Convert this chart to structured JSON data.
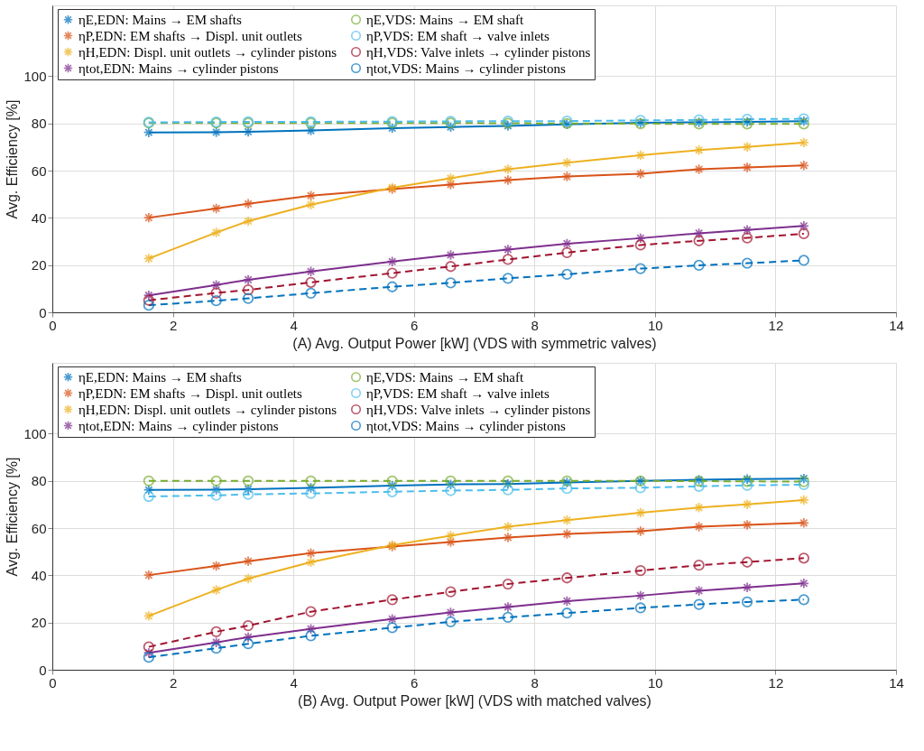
{
  "chart_data": [
    {
      "type": "line",
      "xlabel": "(A) Avg. Output Power [kW]   (VDS with symmetric valves)",
      "ylabel": "Avg. Efficiency [%]",
      "x": [
        1.6,
        2.72,
        3.25,
        4.29,
        5.64,
        6.61,
        7.56,
        8.54,
        9.76,
        10.73,
        11.53,
        12.47
      ],
      "xlim": [
        0,
        14
      ],
      "xticks": [
        0,
        2,
        4,
        6,
        8,
        10,
        12,
        14
      ],
      "ylim": [
        0,
        130
      ],
      "yticks": [
        0,
        20,
        40,
        60,
        80,
        100
      ],
      "grid": true,
      "legend": "top",
      "series": [
        {
          "name": "ηE,EDN: Mains → EM shafts",
          "color": "#0072bd",
          "marker": "cross",
          "line_style": "solid",
          "values": [
            76.2,
            76.3,
            76.5,
            77,
            78,
            78.5,
            79,
            79.6,
            80.3,
            80.5,
            80.7,
            81
          ]
        },
        {
          "name": "ηP,EDN: EM shafts → Displ. unit outlets",
          "color": "#d95319",
          "marker": "cross",
          "line_style": "solid",
          "values": [
            40.1,
            44,
            46,
            49.4,
            52.2,
            54.1,
            56,
            57.5,
            58.7,
            60.6,
            61.4,
            62.2
          ]
        },
        {
          "name": "ηH,EDN: Displ. unit outlets → cylinder pistons",
          "color": "#edb120",
          "marker": "cross",
          "line_style": "solid",
          "values": [
            22.8,
            33.8,
            38.6,
            45.6,
            52.8,
            56.8,
            60.6,
            63.4,
            66.5,
            68.7,
            70.1,
            71.9
          ]
        },
        {
          "name": "ηtot,EDN: Mains → cylinder pistons",
          "color": "#7e2f8e",
          "marker": "cross",
          "line_style": "solid",
          "values": [
            7.2,
            11.6,
            13.8,
            17.3,
            21.5,
            24.3,
            26.6,
            29.1,
            31.4,
            33.5,
            34.9,
            36.6
          ]
        },
        {
          "name": "ηE,VDS: Mains → EM shaft",
          "color": "#77ac30",
          "marker": "circle",
          "line_style": "dashed",
          "values": [
            80.2,
            80.2,
            80.2,
            80.2,
            80.2,
            80.2,
            80.1,
            80,
            79.9,
            79.8,
            79.8,
            79.8
          ]
        },
        {
          "name": "ηP,VDS: EM shaft → valve inlets",
          "color": "#4dbeee",
          "marker": "circle",
          "line_style": "dashed",
          "values": [
            80.5,
            80.6,
            80.7,
            80.7,
            80.8,
            80.9,
            81,
            81,
            81.3,
            81.5,
            81.8,
            82
          ]
        },
        {
          "name": "ηH,VDS: Valve inlets → cylinder pistons",
          "color": "#a2142f",
          "marker": "circle",
          "line_style": "dashed",
          "values": [
            5.1,
            8.2,
            9.5,
            12.7,
            16.6,
            19.4,
            22.4,
            25.3,
            28.5,
            30.3,
            31.5,
            33.3
          ]
        },
        {
          "name": "ηtot,VDS: Mains → cylinder pistons",
          "color": "#0072bd",
          "marker": "circle",
          "line_style": "dashed",
          "values": [
            3,
            4.9,
            5.9,
            8.1,
            10.8,
            12.5,
            14.4,
            16.1,
            18.5,
            19.9,
            20.8,
            22
          ]
        }
      ]
    },
    {
      "type": "line",
      "xlabel": "(B) Avg. Output Power [kW]   (VDS with matched valves)",
      "ylabel": "Avg. Efficiency [%]",
      "x": [
        1.6,
        2.72,
        3.25,
        4.29,
        5.64,
        6.61,
        7.56,
        8.54,
        9.76,
        10.73,
        11.53,
        12.47
      ],
      "xlim": [
        0,
        14
      ],
      "xticks": [
        0,
        2,
        4,
        6,
        8,
        10,
        12,
        14
      ],
      "ylim": [
        0,
        130
      ],
      "yticks": [
        0,
        20,
        40,
        60,
        80,
        100
      ],
      "grid": true,
      "legend": "top",
      "series": [
        {
          "name": "ηE,EDN: Mains → EM shafts",
          "color": "#0072bd",
          "marker": "cross",
          "line_style": "solid",
          "values": [
            76.2,
            76.3,
            76.5,
            77,
            78,
            78.5,
            78.7,
            79.3,
            80,
            80.5,
            80.8,
            81
          ]
        },
        {
          "name": "ηP,EDN: EM shafts → Displ. unit outlets",
          "color": "#d95319",
          "marker": "cross",
          "line_style": "solid",
          "values": [
            40.1,
            44,
            46,
            49.4,
            52.2,
            54.1,
            56,
            57.5,
            58.7,
            60.6,
            61.4,
            62.2
          ]
        },
        {
          "name": "ηH,EDN: Displ. unit outlets → cylinder pistons",
          "color": "#edb120",
          "marker": "cross",
          "line_style": "solid",
          "values": [
            22.8,
            33.8,
            38.6,
            45.6,
            52.8,
            56.8,
            60.6,
            63.4,
            66.5,
            68.7,
            70.1,
            71.9
          ]
        },
        {
          "name": "ηtot,EDN: Mains → cylinder pistons",
          "color": "#7e2f8e",
          "marker": "cross",
          "line_style": "solid",
          "values": [
            7.2,
            11.6,
            13.8,
            17.3,
            21.5,
            24.3,
            26.6,
            29.1,
            31.4,
            33.5,
            34.9,
            36.6
          ]
        },
        {
          "name": "ηE,VDS: Mains → EM shaft",
          "color": "#77ac30",
          "marker": "circle",
          "line_style": "dashed",
          "values": [
            80,
            80,
            80,
            80,
            80,
            80,
            80,
            80,
            80,
            79.9,
            79.8,
            79.7
          ]
        },
        {
          "name": "ηP,VDS: EM shaft → valve inlets",
          "color": "#4dbeee",
          "marker": "circle",
          "line_style": "dashed",
          "values": [
            73.4,
            73.9,
            74.3,
            74.7,
            75.4,
            75.9,
            76.2,
            76.8,
            77.1,
            77.7,
            78.1,
            78.4
          ]
        },
        {
          "name": "ηH,VDS: Valve inlets → cylinder pistons",
          "color": "#a2142f",
          "marker": "circle",
          "line_style": "dashed",
          "values": [
            9.7,
            16.1,
            18.7,
            24.6,
            29.7,
            33,
            36.3,
            38.9,
            42,
            44.3,
            45.6,
            47.3
          ]
        },
        {
          "name": "ηtot,VDS: Mains → cylinder pistons",
          "color": "#0072bd",
          "marker": "circle",
          "line_style": "dashed",
          "values": [
            5.3,
            9.1,
            11,
            14.4,
            17.8,
            20.3,
            22.2,
            24,
            26.2,
            27.7,
            28.7,
            29.7
          ]
        }
      ]
    }
  ]
}
